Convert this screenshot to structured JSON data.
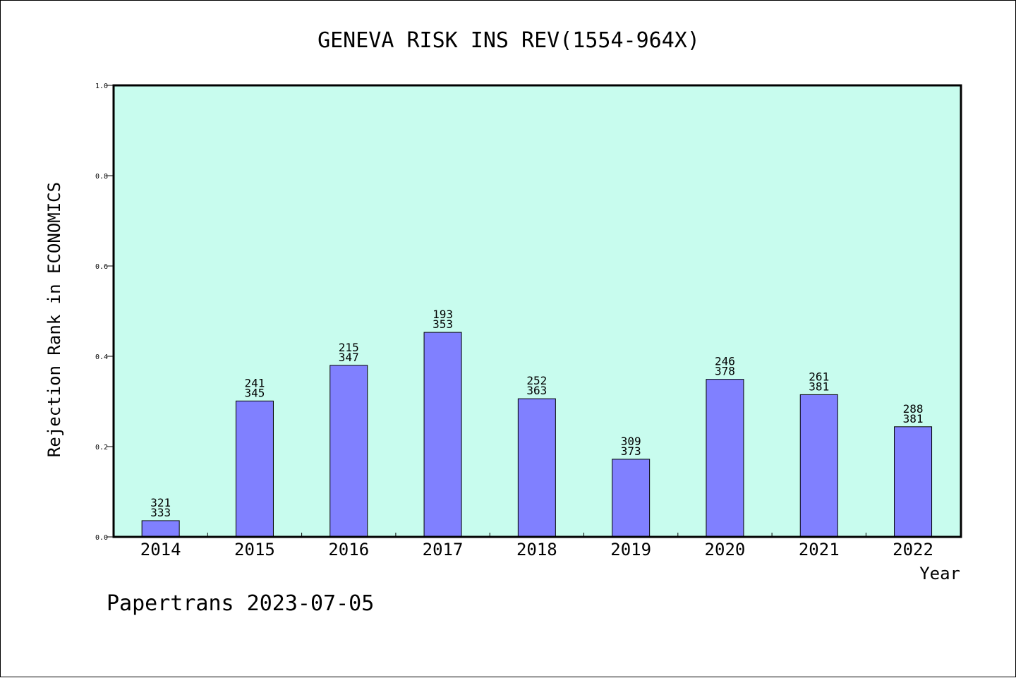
{
  "chart_data": {
    "type": "bar",
    "title": "GENEVA RISK INS REV(1554-964X)",
    "ylabel": "Rejection Rank in ECONOMICS",
    "xlabel": "Year",
    "ylim": [
      0,
      1.0
    ],
    "yticks": [
      "0.0",
      "0.2",
      "0.4",
      "0.6",
      "0.8",
      "1.0"
    ],
    "categories": [
      "2014",
      "2015",
      "2016",
      "2017",
      "2018",
      "2019",
      "2020",
      "2021",
      "2022"
    ],
    "values": [
      0.036,
      0.301,
      0.38,
      0.453,
      0.306,
      0.172,
      0.349,
      0.315,
      0.244
    ],
    "labels_top": [
      "321",
      "241",
      "215",
      "193",
      "252",
      "309",
      "246",
      "261",
      "288"
    ],
    "labels_bottom": [
      "333",
      "345",
      "347",
      "353",
      "363",
      "373",
      "378",
      "381",
      "381"
    ],
    "grid": false,
    "legend": "none",
    "colors": {
      "plot_bg": "#c8fcee",
      "bar_fill": "#8080ff",
      "bar_edge": "#000000"
    }
  },
  "footer": {
    "text": "Papertrans 2023-07-05"
  }
}
